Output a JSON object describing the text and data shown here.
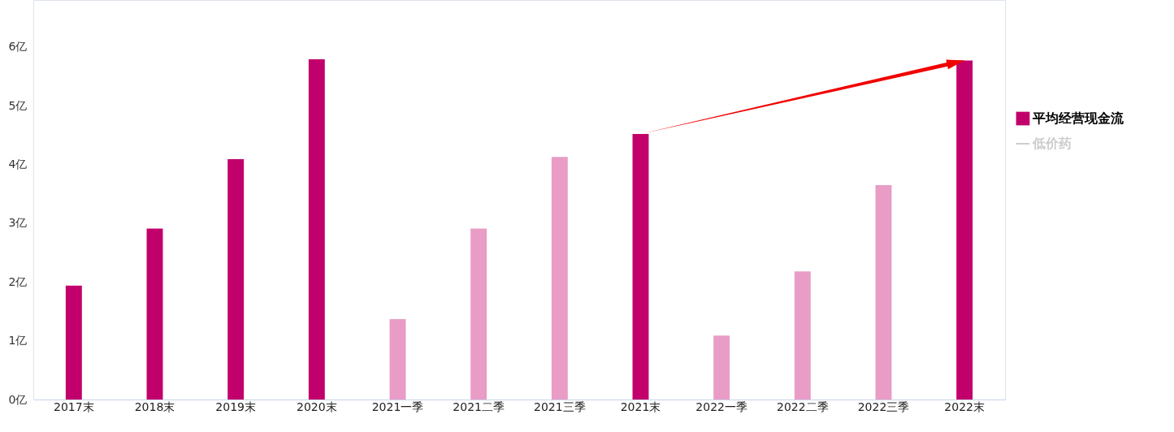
{
  "chart_data": {
    "type": "bar",
    "categories": [
      "2017末",
      "2018末",
      "2019末",
      "2020末",
      "2021一季",
      "2021二季",
      "2021三季",
      "2021末",
      "2022一季",
      "2022二季",
      "2022三季",
      "2022末"
    ],
    "series": [
      {
        "name": "平均经营现金流",
        "color": "#c2006b",
        "colors": [
          "#c2006b",
          "#c2006b",
          "#c2006b",
          "#c2006b",
          "#e89cc6",
          "#e89cc6",
          "#e89cc6",
          "#c2006b",
          "#e89cc6",
          "#e89cc6",
          "#e89cc6",
          "#c2006b"
        ],
        "values": [
          1.94,
          2.91,
          4.09,
          5.79,
          1.37,
          2.91,
          4.13,
          4.52,
          1.09,
          2.18,
          3.65,
          5.77
        ]
      },
      {
        "name": "低价药",
        "type": "line",
        "color": "#cccccc",
        "values": [
          null,
          null,
          null,
          null,
          null,
          null,
          null,
          null,
          null,
          null,
          null,
          null
        ]
      }
    ],
    "ylim": [
      0,
      6.8
    ],
    "yticks": [
      {
        "value": 0,
        "label": "0亿"
      },
      {
        "value": 1,
        "label": "1亿"
      },
      {
        "value": 2,
        "label": "2亿"
      },
      {
        "value": 3,
        "label": "3亿"
      },
      {
        "value": 4,
        "label": "4亿"
      },
      {
        "value": 5,
        "label": "5亿"
      },
      {
        "value": 6,
        "label": "6亿"
      }
    ],
    "grid": false,
    "legend": "right"
  }
}
